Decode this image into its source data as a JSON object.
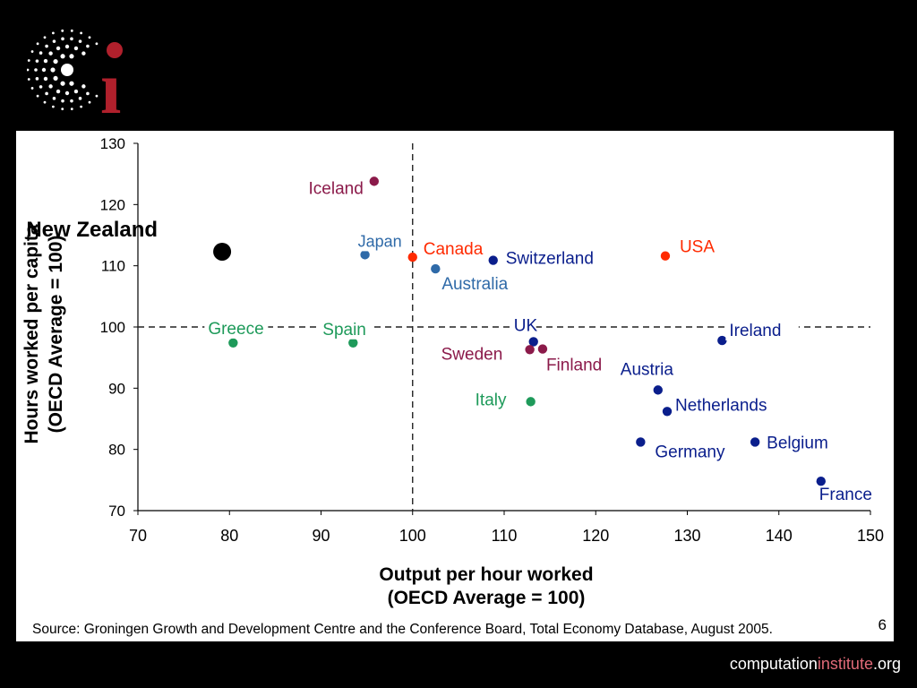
{
  "logo": {
    "name": "ci-logo",
    "letters": "ci"
  },
  "footer": {
    "pre": "computation",
    "accent": "institute",
    "post": ".org",
    "accent_color": "#e06a78"
  },
  "slide": {
    "page_number": "6",
    "source": "Source: Groningen Growth and Development Centre and the Conference Board, Total Economy Database, August 2005."
  },
  "chart_data": {
    "type": "scatter",
    "xlabel": [
      "Output per hour worked",
      "(OECD Average = 100)"
    ],
    "ylabel": [
      "Hours worked per capita",
      "(OECD Average = 100)"
    ],
    "xlim": [
      70,
      150
    ],
    "ylim": [
      70,
      130
    ],
    "x_ticks": [
      70,
      80,
      90,
      100,
      110,
      120,
      130,
      140,
      150
    ],
    "y_ticks": [
      70,
      80,
      90,
      100,
      110,
      120,
      130
    ],
    "reference_lines": {
      "x": 100,
      "y": 100,
      "style": "dashed"
    },
    "grid": false,
    "legend": "none",
    "points": [
      {
        "label": "New Zealand",
        "x": 79.2,
        "y": 112.3,
        "color": "#000000",
        "highlight": true
      },
      {
        "label": "Iceland",
        "x": 95.8,
        "y": 123.8,
        "color": "#8b1a4a"
      },
      {
        "label": "Japan",
        "x": 94.8,
        "y": 111.8,
        "color": "#2f6aa8"
      },
      {
        "label": "Canada",
        "x": 100.0,
        "y": 111.4,
        "color": "#ff2a00"
      },
      {
        "label": "Australia",
        "x": 102.5,
        "y": 109.5,
        "color": "#2f6aa8"
      },
      {
        "label": "Switzerland",
        "x": 108.8,
        "y": 110.9,
        "color": "#0a1e8c"
      },
      {
        "label": "USA",
        "x": 127.6,
        "y": 111.6,
        "color": "#ff2a00"
      },
      {
        "label": "Greece",
        "x": 80.4,
        "y": 97.4,
        "color": "#1e9a5a"
      },
      {
        "label": "Spain",
        "x": 93.5,
        "y": 97.4,
        "color": "#1e9a5a"
      },
      {
        "label": "UK",
        "x": 113.2,
        "y": 97.6,
        "color": "#0a1e8c"
      },
      {
        "label": "Sweden",
        "x": 112.8,
        "y": 96.3,
        "color": "#8b1a4a"
      },
      {
        "label": "Finland",
        "x": 114.2,
        "y": 96.4,
        "color": "#8b1a4a"
      },
      {
        "label": "Ireland",
        "x": 133.8,
        "y": 97.8,
        "color": "#0a1e8c"
      },
      {
        "label": "Italy",
        "x": 112.9,
        "y": 87.8,
        "color": "#1e9a5a"
      },
      {
        "label": "Austria",
        "x": 126.8,
        "y": 89.7,
        "color": "#0a1e8c"
      },
      {
        "label": "Netherlands",
        "x": 127.8,
        "y": 86.2,
        "color": "#0a1e8c"
      },
      {
        "label": "Germany",
        "x": 124.9,
        "y": 81.2,
        "color": "#0a1e8c"
      },
      {
        "label": "Belgium",
        "x": 137.4,
        "y": 81.2,
        "color": "#0a1e8c"
      },
      {
        "label": "France",
        "x": 144.6,
        "y": 74.8,
        "color": "#0a1e8c"
      }
    ]
  }
}
